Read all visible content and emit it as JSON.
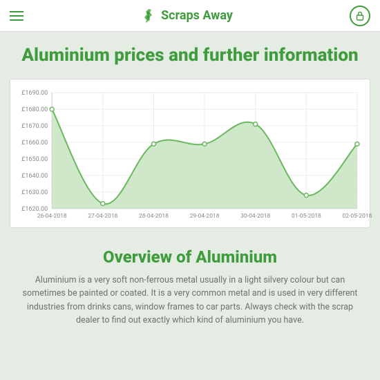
{
  "header": {
    "brand_name": "Scraps Away"
  },
  "page_title": "Aluminium prices and further information",
  "chart": {
    "type": "area",
    "currency_prefix": "£",
    "y_axis": {
      "min": 1620,
      "max": 1690,
      "step": 10,
      "labels": [
        "£1690.00",
        "£1680.00",
        "£1670.00",
        "£1660.00",
        "£1650.00",
        "£1640.00",
        "£1630.00",
        "£1620.00"
      ]
    },
    "x_axis": {
      "labels": [
        "26-04-2018",
        "27-04-2018",
        "28-04-2018",
        "29-04-2018",
        "30-04-2018",
        "01-05-2018",
        "02-05-2018"
      ]
    },
    "values": [
      1680,
      1623,
      1659,
      1659,
      1671,
      1628,
      1659
    ],
    "line_color": "#6bb75f",
    "fill_color": "#c8e4c1",
    "marker_stroke": "#6bb75f",
    "marker_fill": "#ffffff",
    "grid_color": "#ececec",
    "axis_color": "#cfcfcf",
    "background_color": "#ffffff",
    "line_width": 2,
    "marker_radius": 3
  },
  "section_title": "Overview of Aluminium",
  "body_text": "Aluminium is a very soft non-ferrous metal usually in a light silvery colour but can sometimes be painted or coated. It is a very common metal and is used in very different industries from drinks cans, window frames to car parts. Always check with the scrap dealer to find out exactly which kind of aluminium you have."
}
